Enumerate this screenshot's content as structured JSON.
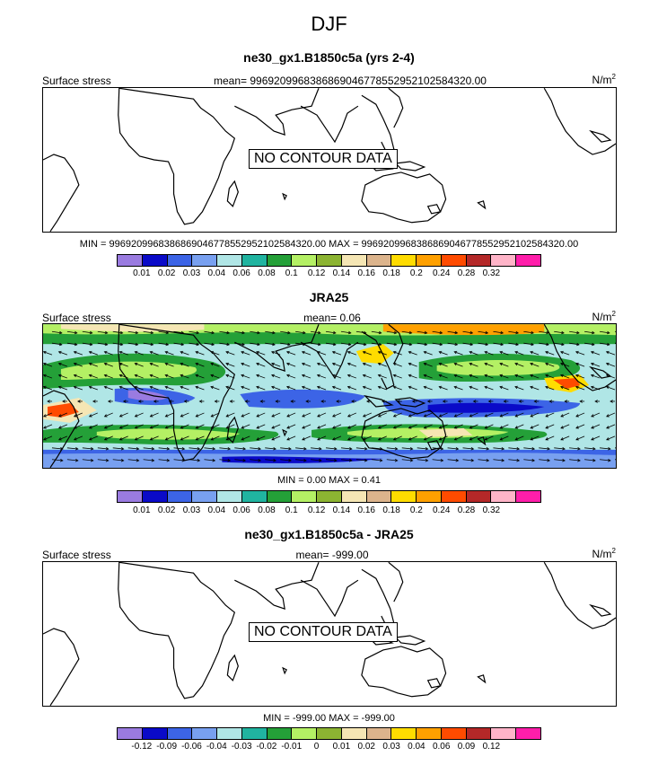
{
  "title": "DJF",
  "units": "N/m",
  "units_exp": "2",
  "variable_label": "Surface stress",
  "no_data_text": "NO CONTOUR DATA",
  "colors": [
    "#9a7be0",
    "#0a0ac8",
    "#3c64e6",
    "#78a0f0",
    "#b0e6e6",
    "#20b4a0",
    "#24a038",
    "#b4f064",
    "#8cb432",
    "#f5e6b4",
    "#dcb48c",
    "#ffdc00",
    "#ffa000",
    "#ff4b00",
    "#b42828",
    "#ffb4c8",
    "#ff1eaa"
  ],
  "panels": [
    {
      "title": "ne30_gx1.B1850c5a (yrs 2-4)",
      "mean": "mean= 9969209968386869046778552952102584320.00",
      "stats": "MIN = 9969209968386869046778552952102584320.00  MAX = 9969209968386869046778552952102584320.00",
      "has_data": false,
      "colorbar_labels": [
        "0.01",
        "0.02",
        "0.03",
        "0.04",
        "0.06",
        "0.08",
        "0.1",
        "0.12",
        "0.14",
        "0.16",
        "0.18",
        "0.2",
        "0.24",
        "0.28",
        "0.32"
      ]
    },
    {
      "title": "JRA25",
      "mean": "mean=  0.06",
      "stats": "MIN =  0.00  MAX =  0.41",
      "has_data": true,
      "colorbar_labels": [
        "0.01",
        "0.02",
        "0.03",
        "0.04",
        "0.06",
        "0.08",
        "0.1",
        "0.12",
        "0.14",
        "0.16",
        "0.18",
        "0.2",
        "0.24",
        "0.28",
        "0.32"
      ]
    },
    {
      "title": "ne30_gx1.B1850c5a - JRA25",
      "mean": "mean= -999.00",
      "stats": "MIN = -999.00  MAX = -999.00",
      "has_data": false,
      "colorbar_labels": [
        "-0.12",
        "-0.09",
        "-0.06",
        "-0.04",
        "-0.03",
        "-0.02",
        "-0.01",
        "0",
        "0.01",
        "0.02",
        "0.03",
        "0.04",
        "0.06",
        "0.09",
        "0.12"
      ]
    }
  ]
}
